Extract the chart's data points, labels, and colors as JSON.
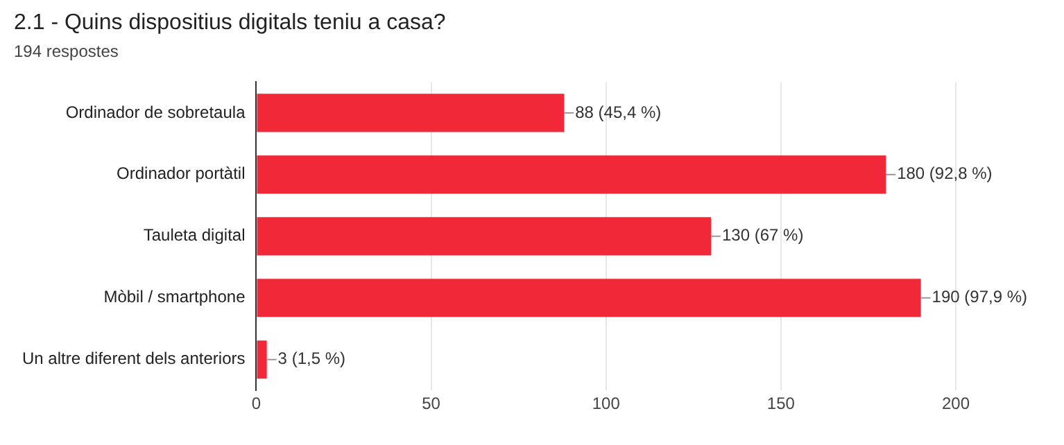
{
  "chart_data": {
    "type": "bar",
    "orientation": "horizontal",
    "title": "2.1 - Quins dispositius digitals teniu a casa?",
    "subtitle": "194 respostes",
    "categories": [
      "Ordinador de sobretaula",
      "Ordinador portàtil",
      "Tauleta digital",
      "Mòbil / smartphone",
      "Un altre diferent dels anteriors"
    ],
    "values": [
      88,
      180,
      130,
      190,
      3
    ],
    "value_labels": [
      "88 (45,4 %)",
      "180 (92,8 %)",
      "130 (67 %)",
      "190 (97,9 %)",
      "3 (1,5 %)"
    ],
    "color": "#f02837",
    "xlim": [
      0,
      200
    ],
    "xticks": [
      0,
      50,
      100,
      150,
      200
    ],
    "grid": "x",
    "legend": false
  }
}
